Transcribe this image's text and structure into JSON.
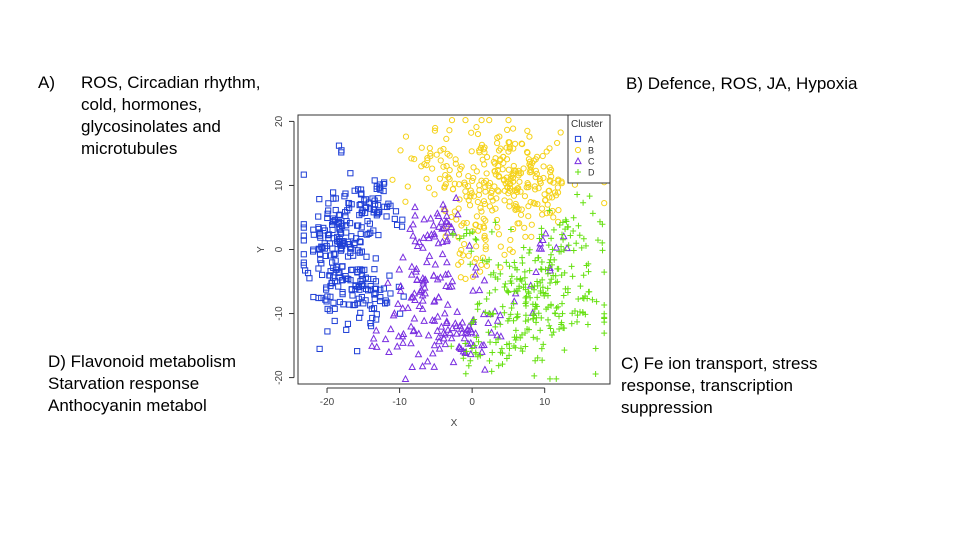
{
  "annotations": {
    "a_letter": "A)",
    "a_text": "ROS, Circadian rhythm,\ncold, hormones,\nglycosinolates and\nmicrotubules",
    "b_text": "B) Defence, ROS, JA, Hypoxia",
    "c_text": "C) Fe ion transport, stress\nresponse, transcription\nsuppression",
    "d_text": "D) Flavonoid metabolism\n     Starvation response\n     Anthocyanin metabol"
  },
  "chart_data": {
    "type": "scatter",
    "xlabel": "X",
    "ylabel": "Y",
    "xlim": [
      -24,
      19
    ],
    "ylim": [
      -21,
      21
    ],
    "x_ticks": [
      -20,
      -10,
      0,
      10
    ],
    "y_ticks": [
      -20,
      -10,
      0,
      10,
      20
    ],
    "grid": false,
    "legend": {
      "title": "Cluster",
      "position": "top-right"
    },
    "series": [
      {
        "name": "A",
        "marker": "square",
        "color": "#1f3fd6",
        "regions": [
          {
            "cx": -18,
            "cy": 0,
            "sx": 2.6,
            "sy": 6.0,
            "n": 230
          },
          {
            "cx": -13,
            "cy": 7,
            "sx": 1.6,
            "sy": 2.0,
            "n": 40
          },
          {
            "cx": -13,
            "cy": -8,
            "sx": 1.4,
            "sy": 2.0,
            "n": 30
          }
        ]
      },
      {
        "name": "B",
        "marker": "circle",
        "color": "#f5d21a",
        "regions": [
          {
            "cx": 5,
            "cy": 11,
            "sx": 5.5,
            "sy": 4.2,
            "n": 270
          },
          {
            "cx": 1,
            "cy": 1,
            "sx": 2.5,
            "sy": 2.8,
            "n": 40
          },
          {
            "cx": -5,
            "cy": 13,
            "sx": 1.5,
            "sy": 1.8,
            "n": 25
          }
        ]
      },
      {
        "name": "C",
        "marker": "triangle",
        "color": "#7a2fe0",
        "regions": [
          {
            "cx": -5,
            "cy": 3,
            "sx": 2.0,
            "sy": 2.0,
            "n": 40
          },
          {
            "cx": -3,
            "cy": -11,
            "sx": 4.0,
            "sy": 4.0,
            "n": 120
          },
          {
            "cx": -7,
            "cy": -4,
            "sx": 2.0,
            "sy": 2.0,
            "n": 25
          },
          {
            "cx": -13,
            "cy": -15,
            "sx": 1.0,
            "sy": 1.0,
            "n": 6
          },
          {
            "cx": 10,
            "cy": 0,
            "sx": 2.0,
            "sy": 2.0,
            "n": 12
          }
        ]
      },
      {
        "name": "D",
        "marker": "plus",
        "color": "#66e010",
        "regions": [
          {
            "cx": 9,
            "cy": -8,
            "sx": 4.5,
            "sy": 5.0,
            "n": 240
          },
          {
            "cx": 14,
            "cy": 3,
            "sx": 2.0,
            "sy": 2.5,
            "n": 30
          },
          {
            "cx": 0,
            "cy": 2,
            "sx": 1.5,
            "sy": 1.0,
            "n": 12
          },
          {
            "cx": 2,
            "cy": -16,
            "sx": 3.0,
            "sy": 1.5,
            "n": 25
          }
        ]
      }
    ]
  }
}
